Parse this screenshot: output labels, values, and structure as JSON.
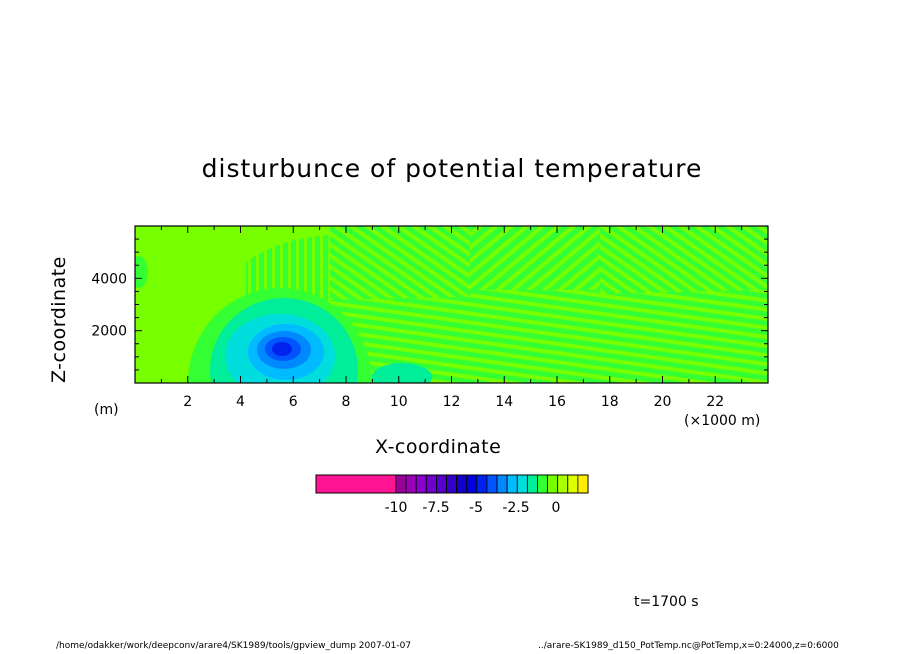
{
  "chart_data": {
    "type": "heatmap",
    "title": "disturbunce of potential temperature",
    "xlabel": "X-coordinate",
    "ylabel": "Z-coordinate",
    "x_unit": "(×1000 m)",
    "y_unit": "(m)",
    "xlim": [
      0,
      24
    ],
    "ylim": [
      0,
      6000
    ],
    "x_ticks": [
      2,
      4,
      6,
      8,
      10,
      12,
      14,
      16,
      18,
      20,
      22
    ],
    "x_tick_labels": [
      "2",
      "4",
      "6",
      "8",
      "10",
      "12",
      "14",
      "16",
      "18",
      "20",
      "22"
    ],
    "y_ticks": [
      2000,
      4000
    ],
    "y_tick_labels": [
      "2000",
      "4000"
    ],
    "colorbar": {
      "min": -15,
      "max": 2,
      "tick_values": [
        -10,
        -7.5,
        -5,
        -2.5,
        0
      ],
      "tick_labels": [
        "-10",
        "-7.5",
        "-5",
        "-2.5",
        "0"
      ],
      "colors": [
        "#ff1493",
        "#990099",
        "#9b00bb",
        "#8a00cc",
        "#7000cc",
        "#5500cc",
        "#3300cc",
        "#1100cc",
        "#0000dd",
        "#0022ee",
        "#0055ff",
        "#0088ff",
        "#00bbff",
        "#00dddd",
        "#00ee99",
        "#33ff33",
        "#77ff00",
        "#aaff00",
        "#ddff00",
        "#ffee00"
      ]
    },
    "features": [
      {
        "kind": "cold-core",
        "x_center": 5.8,
        "z_center": 1400,
        "min_value": -7.5
      },
      {
        "kind": "cold-pool",
        "x_range": [
          2.5,
          9.5
        ],
        "z_range": [
          0,
          3300
        ],
        "value": -1
      },
      {
        "kind": "banded-noise",
        "x_range": [
          4.5,
          24
        ],
        "z_range": [
          0,
          6000
        ],
        "value_range": [
          -1,
          1
        ]
      }
    ],
    "time": "t=1700 s"
  },
  "footer": {
    "left": "/home/odakker/work/deepconv/arare4/SK1989/tools/gpview_dump  2007-01-07",
    "right": "../arare-SK1989_d150_PotTemp.nc@PotTemp,x=0:24000,z=0:6000"
  }
}
